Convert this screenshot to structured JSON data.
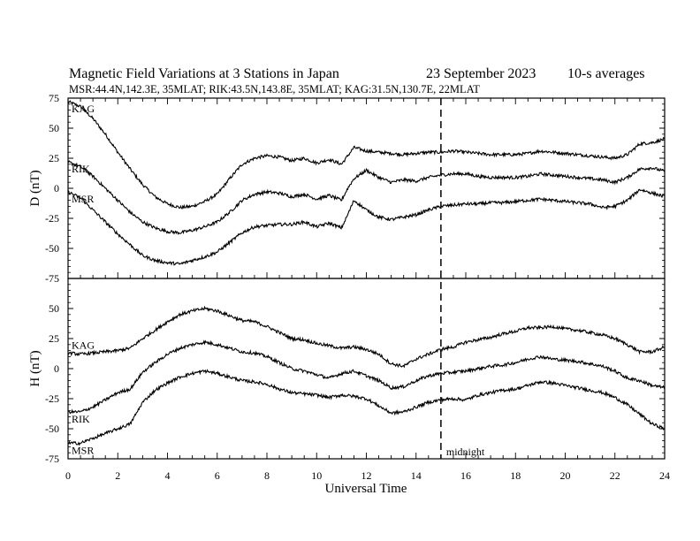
{
  "header": {
    "title": "Magnetic Field Variations at 3 Stations in Japan",
    "date": "23 September 2023",
    "averaging": "10-s averages",
    "stations_line": "MSR:44.4N,142.3E, 35MLAT;   RIK:43.5N,143.8E, 35MLAT;   KAG:31.5N,130.7E, 22MLAT"
  },
  "chart_data": [
    {
      "type": "line",
      "panel": "D",
      "ylabel": "D (nT)",
      "xlabel": "",
      "xlim": [
        0,
        24
      ],
      "ylim": [
        -75,
        75
      ],
      "xticks": [
        0,
        2,
        4,
        6,
        8,
        10,
        12,
        14,
        16,
        18,
        20,
        22,
        24
      ],
      "yticks": [
        75,
        50,
        25,
        0,
        -25,
        -50,
        -75
      ],
      "grid": false,
      "series": [
        {
          "name": "KAG",
          "x": [
            0,
            0.5,
            1,
            1.5,
            2,
            2.5,
            3,
            3.5,
            4,
            4.5,
            5,
            5.5,
            6,
            6.5,
            7,
            7.5,
            8,
            8.5,
            9,
            9.5,
            10,
            10.5,
            11,
            11.25,
            11.5,
            12,
            12.5,
            13,
            13.5,
            14,
            14.5,
            15,
            15.5,
            16,
            16.5,
            17,
            17.5,
            18,
            18.5,
            19,
            19.5,
            20,
            20.5,
            21,
            21.5,
            22,
            22.5,
            23,
            23.5,
            24
          ],
          "y": [
            72,
            68,
            58,
            45,
            30,
            16,
            3,
            -7,
            -13,
            -16,
            -15,
            -11,
            -5,
            8,
            20,
            25,
            27,
            26,
            23,
            25,
            21,
            24,
            20,
            27,
            34,
            31,
            30,
            29,
            28,
            29,
            30,
            30,
            31,
            30,
            29,
            28,
            28,
            28,
            29,
            31,
            30,
            29,
            28,
            27,
            26,
            25,
            28,
            37,
            38,
            41
          ]
        },
        {
          "name": "RIK",
          "x": [
            0,
            0.5,
            1,
            1.5,
            2,
            2.5,
            3,
            3.5,
            4,
            4.5,
            5,
            5.5,
            6,
            6.5,
            7,
            7.5,
            8,
            8.5,
            9,
            9.5,
            10,
            10.5,
            11,
            11.25,
            11.5,
            12,
            12.5,
            13,
            13.5,
            14,
            14.5,
            15,
            15.5,
            16,
            16.5,
            17,
            17.5,
            18,
            18.5,
            19,
            19.5,
            20,
            20.5,
            21,
            21.5,
            22,
            22.5,
            23,
            23.5,
            24
          ],
          "y": [
            22,
            18,
            10,
            0,
            -10,
            -20,
            -28,
            -33,
            -36,
            -37,
            -35,
            -32,
            -28,
            -20,
            -10,
            -5,
            -3,
            -4,
            -7,
            -5,
            -9,
            -6,
            -10,
            0,
            8,
            15,
            9,
            5,
            7,
            6,
            9,
            11,
            12,
            12,
            10,
            9,
            9,
            9,
            10,
            12,
            11,
            10,
            9,
            8,
            7,
            5,
            9,
            16,
            17,
            14
          ]
        },
        {
          "name": "MSR",
          "x": [
            0,
            0.5,
            1,
            1.5,
            2,
            2.5,
            3,
            3.5,
            4,
            4.5,
            5,
            5.5,
            6,
            6.5,
            7,
            7.5,
            8,
            8.5,
            9,
            9.5,
            10,
            10.5,
            11,
            11.25,
            11.5,
            12,
            12.5,
            13,
            13.5,
            14,
            14.5,
            15,
            15.5,
            16,
            16.5,
            17,
            17.5,
            18,
            18.5,
            19,
            19.5,
            20,
            20.5,
            21,
            21.5,
            22,
            22.5,
            23,
            23.5,
            24
          ],
          "y": [
            -3,
            -8,
            -18,
            -28,
            -38,
            -47,
            -56,
            -60,
            -62,
            -63,
            -60,
            -57,
            -53,
            -45,
            -37,
            -32,
            -31,
            -30,
            -30,
            -28,
            -32,
            -29,
            -33,
            -22,
            -10,
            -18,
            -24,
            -26,
            -24,
            -22,
            -18,
            -15,
            -14,
            -13,
            -13,
            -12,
            -12,
            -11,
            -10,
            -9,
            -10,
            -11,
            -12,
            -13,
            -16,
            -15,
            -10,
            -1,
            -4,
            -7
          ]
        }
      ]
    },
    {
      "type": "line",
      "panel": "H",
      "ylabel": "H (nT)",
      "xlabel": "Universal Time",
      "xlim": [
        0,
        24
      ],
      "ylim": [
        -75,
        75
      ],
      "xticks": [
        0,
        2,
        4,
        6,
        8,
        10,
        12,
        14,
        16,
        18,
        20,
        22,
        24
      ],
      "yticks": [
        50,
        25,
        0,
        -25,
        -50,
        -75
      ],
      "grid": false,
      "series": [
        {
          "name": "KAG",
          "x": [
            0,
            0.5,
            1,
            1.5,
            2,
            2.5,
            3,
            3.5,
            4,
            4.5,
            5,
            5.5,
            6,
            6.5,
            7,
            7.5,
            8,
            8.5,
            9,
            9.5,
            10,
            10.5,
            11,
            11.5,
            12,
            12.5,
            13,
            13.5,
            14,
            14.5,
            15,
            15.5,
            16,
            16.5,
            17,
            17.5,
            18,
            18.5,
            19,
            19.5,
            20,
            20.5,
            21,
            21.5,
            22,
            22.5,
            23,
            23.5,
            24
          ],
          "y": [
            13,
            12,
            13,
            14,
            15,
            17,
            25,
            32,
            39,
            45,
            48,
            50,
            48,
            44,
            40,
            39,
            35,
            30,
            25,
            24,
            21,
            19,
            17,
            18,
            16,
            12,
            4,
            2,
            8,
            12,
            16,
            18,
            22,
            24,
            26,
            29,
            31,
            34,
            34,
            35,
            33,
            32,
            30,
            28,
            25,
            20,
            14,
            14,
            18
          ]
        },
        {
          "name": "RIK",
          "x": [
            0,
            0.5,
            1,
            1.5,
            2,
            2.5,
            3,
            3.5,
            4,
            4.5,
            5,
            5.5,
            6,
            6.5,
            7,
            7.5,
            8,
            8.5,
            9,
            9.5,
            10,
            10.5,
            11,
            11.5,
            12,
            12.5,
            13,
            13.5,
            14,
            14.5,
            15,
            15.5,
            16,
            16.5,
            17,
            17.5,
            18,
            18.5,
            19,
            19.5,
            20,
            20.5,
            21,
            21.5,
            22,
            22.5,
            23,
            23.5,
            24
          ],
          "y": [
            -36,
            -36,
            -32,
            -26,
            -20,
            -17,
            -3,
            5,
            12,
            17,
            20,
            22,
            20,
            17,
            14,
            13,
            10,
            5,
            0,
            -2,
            -5,
            -8,
            -4,
            -2,
            -6,
            -10,
            -16,
            -15,
            -10,
            -6,
            -4,
            -3,
            -2,
            0,
            2,
            3,
            5,
            8,
            10,
            8,
            7,
            6,
            4,
            2,
            -2,
            -8,
            -10,
            -14,
            -16
          ]
        },
        {
          "name": "MSR",
          "x": [
            0,
            0.5,
            1,
            1.5,
            2,
            2.5,
            3,
            3.5,
            4,
            4.5,
            5,
            5.5,
            6,
            6.5,
            7,
            7.5,
            8,
            8.5,
            9,
            9.5,
            10,
            10.5,
            11,
            11.5,
            12,
            12.5,
            13,
            13.5,
            14,
            14.5,
            15,
            15.5,
            16,
            16.5,
            17,
            17.5,
            18,
            18.5,
            19,
            19.5,
            20,
            20.5,
            21,
            21.5,
            22,
            22.5,
            23,
            23.5,
            24
          ],
          "y": [
            -62,
            -62,
            -58,
            -54,
            -50,
            -46,
            -28,
            -18,
            -12,
            -7,
            -4,
            -2,
            -4,
            -7,
            -10,
            -11,
            -13,
            -17,
            -20,
            -21,
            -22,
            -24,
            -22,
            -23,
            -25,
            -31,
            -37,
            -36,
            -32,
            -28,
            -26,
            -25,
            -26,
            -22,
            -20,
            -18,
            -17,
            -14,
            -11,
            -12,
            -14,
            -16,
            -18,
            -20,
            -24,
            -30,
            -38,
            -46,
            -50
          ]
        }
      ]
    }
  ],
  "annotations": {
    "midnight_label": "midnight",
    "midnight_ut": 15
  }
}
